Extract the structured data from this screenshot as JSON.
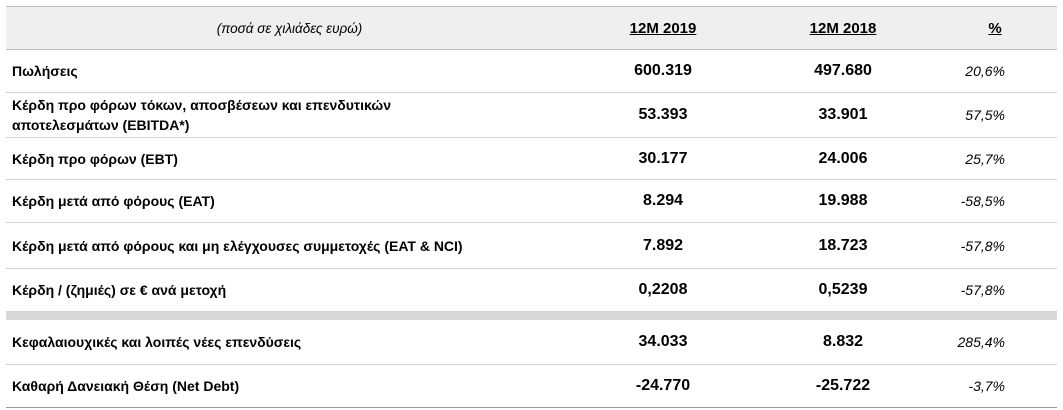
{
  "header": {
    "label": "(ποσά σε χιλιάδες ευρώ)",
    "col_2019": "12M 2019",
    "col_2018": "12M 2018",
    "col_pct": "%"
  },
  "rows": [
    {
      "label": "Πωλήσεις",
      "y2019": "600.319",
      "y2018": "497.680",
      "pct": "20,6%"
    },
    {
      "label_line1": "Κέρδη προ φόρων τόκων, αποσβέσεων και επενδυτικών",
      "label_line2": "αποτελεσμάτων (EBITDA*)",
      "y2019": "53.393",
      "y2018": "33.901",
      "pct": "57,5%"
    },
    {
      "label": "Κέρδη προ φόρων (EBT)",
      "y2019": "30.177",
      "y2018": "24.006",
      "pct": "25,7%"
    },
    {
      "label": "Κέρδη μετά από φόρους (EAT)",
      "y2019": "8.294",
      "y2018": "19.988",
      "pct": "-58,5%"
    },
    {
      "label": "Κέρδη μετά από φόρους και μη ελέγχουσες συμμετοχές (EAT & NCI)",
      "y2019": "7.892",
      "y2018": "18.723",
      "pct": "-57,8%"
    },
    {
      "label": "Κέρδη / (ζημιές) σε € ανά μετοχή",
      "y2019": "0,2208",
      "y2018": "0,5239",
      "pct": "-57,8%"
    },
    {
      "label": "Κεφαλαιουχικές και λοιπές νέες επενδύσεις",
      "y2019": "34.033",
      "y2018": "8.832",
      "pct": "285,4%"
    },
    {
      "label": "Καθαρή Δανειακή Θέση (Net Debt)",
      "y2019": "-24.770",
      "y2018": "-25.722",
      "pct": "-3,7%"
    }
  ],
  "colors": {
    "header_bg": "#efefef",
    "separator": "#d9d9d9"
  }
}
